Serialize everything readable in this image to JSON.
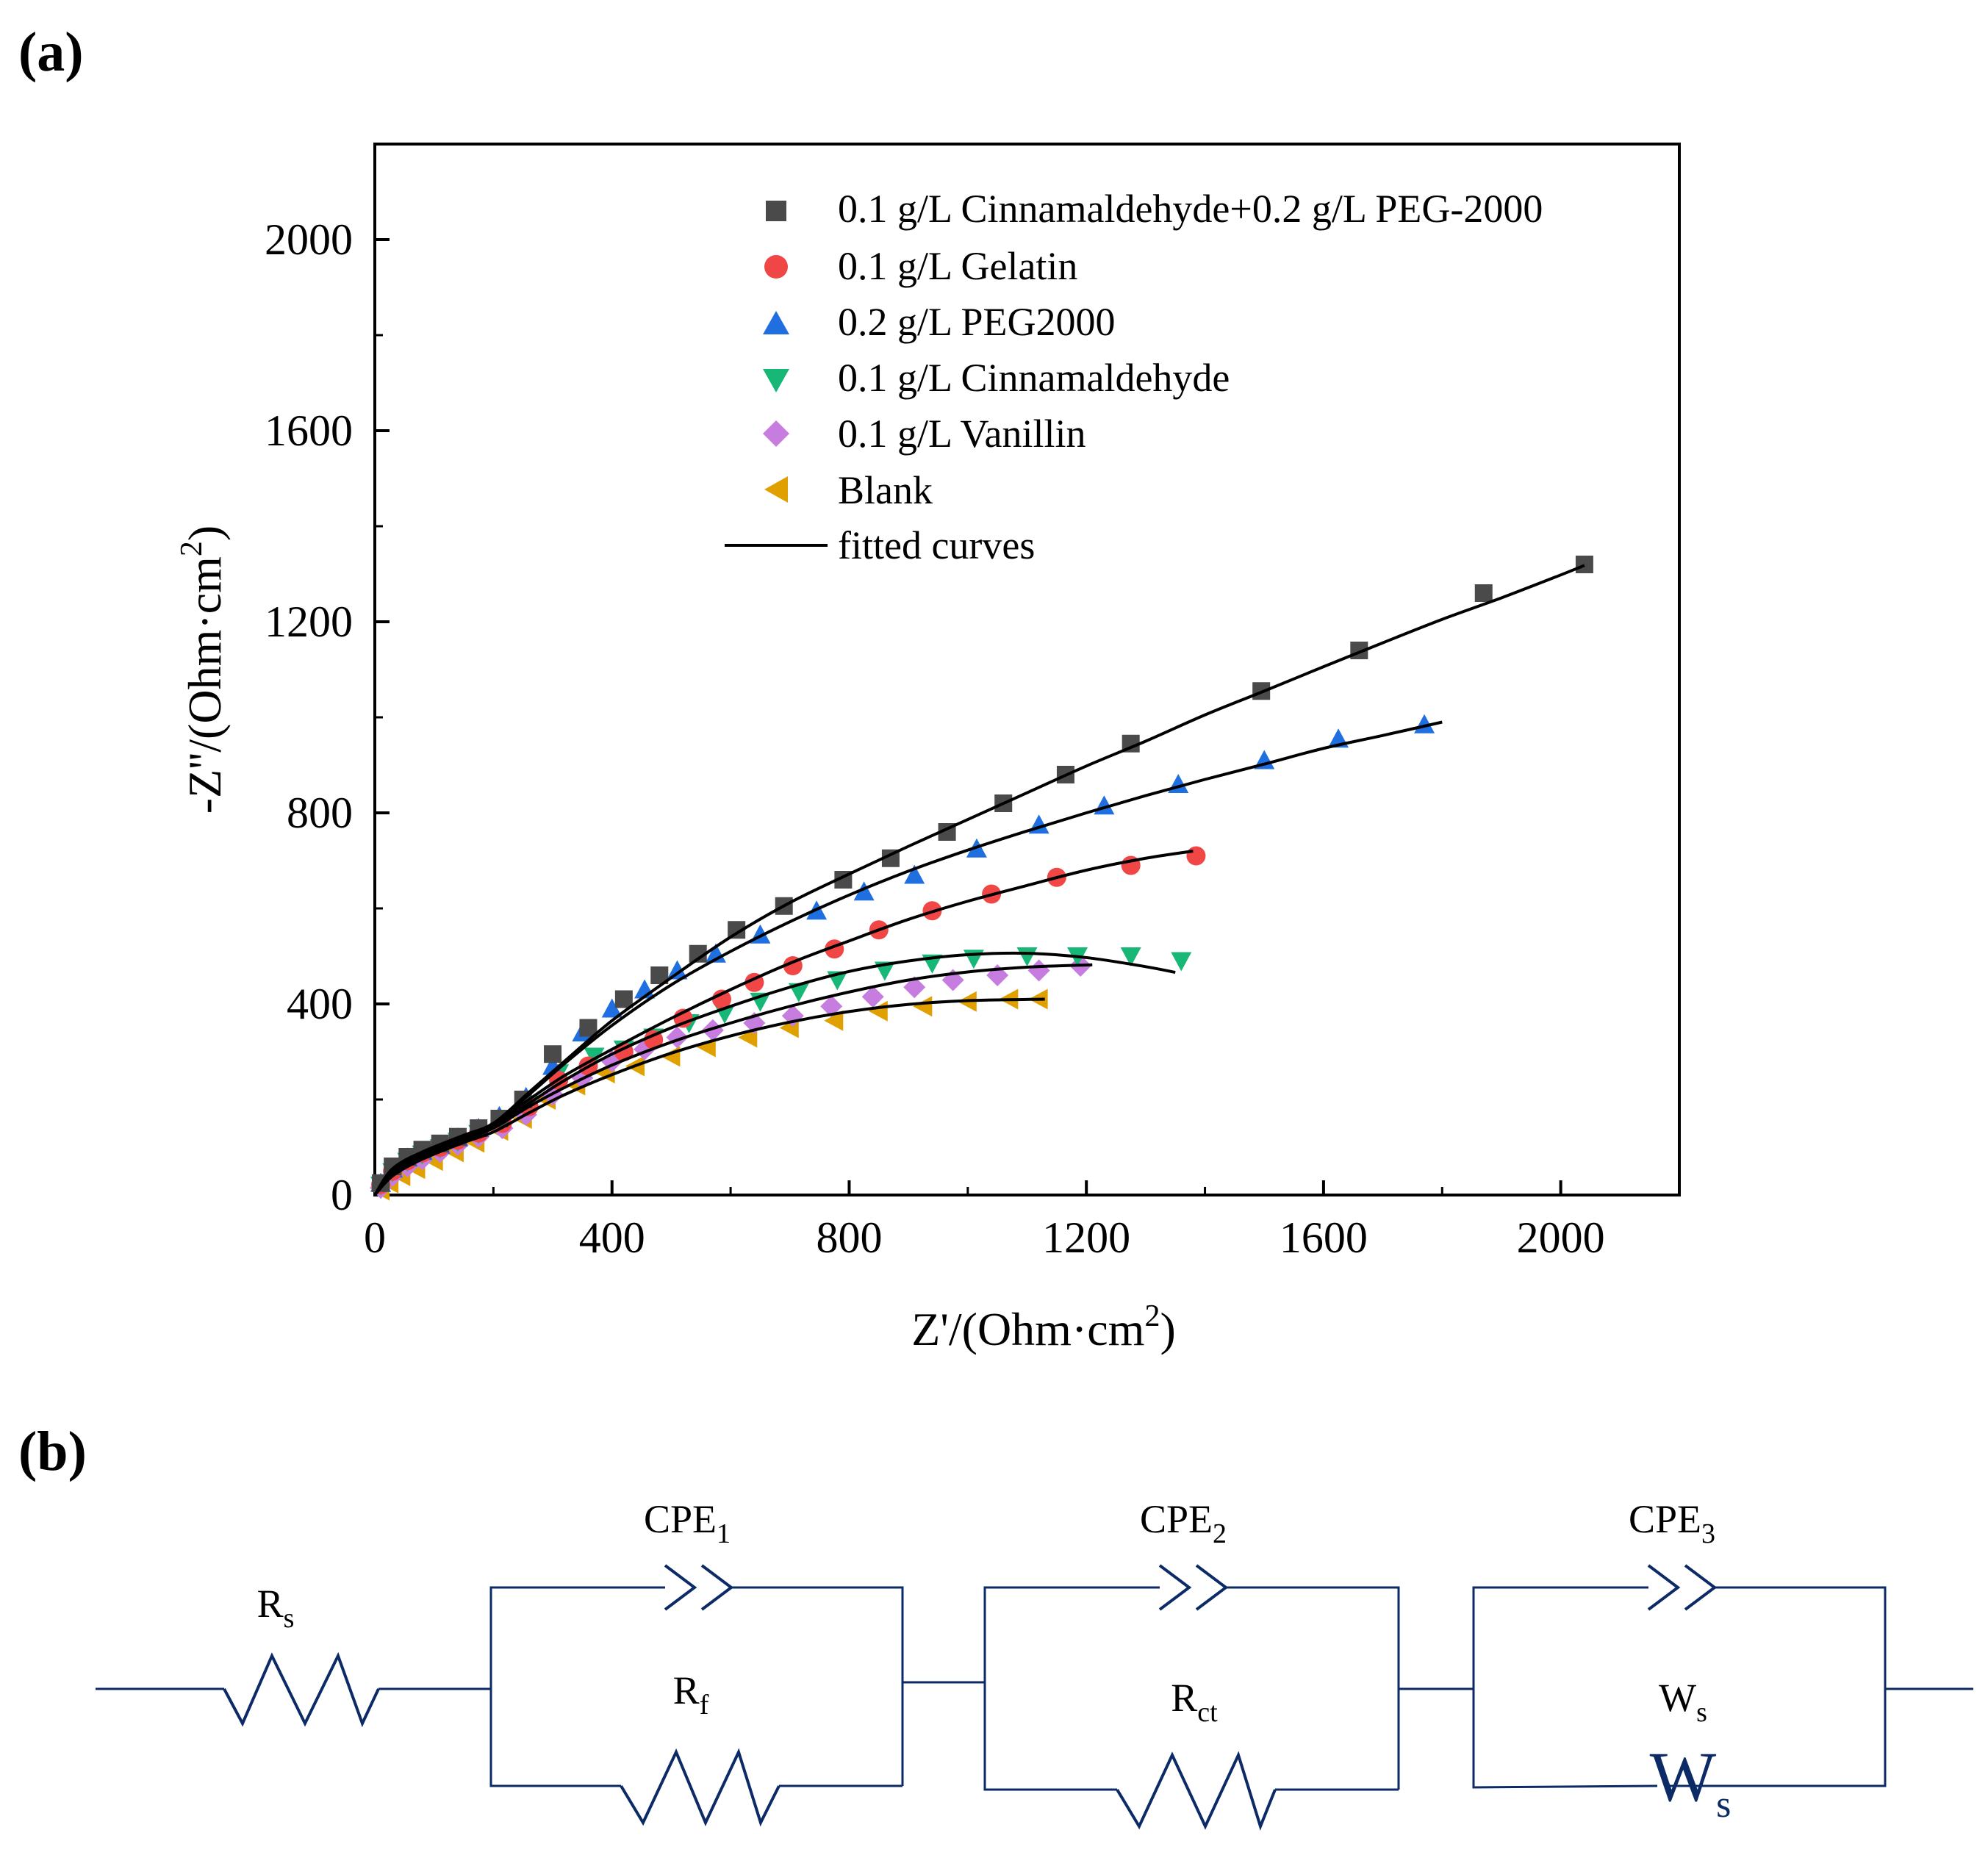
{
  "panel_a": {
    "label": "(a)"
  },
  "panel_b": {
    "label": "(b)"
  },
  "chart_data": {
    "type": "scatter",
    "title": "",
    "xlabel": "Z'/(Ohm·cm",
    "xlabel_sup": "2",
    "xlabel_end": ")",
    "ylabel": "-Z''/(Ohm·cm",
    "ylabel_sup": "2",
    "ylabel_end": ")",
    "xlim": [
      0,
      2200
    ],
    "ylim": [
      0,
      2200
    ],
    "xticks": [
      0,
      400,
      800,
      1200,
      1600,
      2000
    ],
    "xtick_labels": [
      "0",
      "400",
      "800",
      "1200",
      "1600",
      "2000"
    ],
    "yticks": [
      0,
      400,
      800,
      1200,
      1600,
      2000
    ],
    "ytick_labels": [
      "0",
      "400",
      "800",
      "1200",
      "1600",
      "2000"
    ],
    "legend_position": "top-right",
    "fit_label": "fitted curves",
    "series": [
      {
        "name": "0.1 g/L Cinnamaldehyde+0.2 g/L PEG-2000",
        "marker": "square",
        "color": "#4a4a4a",
        "x": [
          10,
          30,
          55,
          80,
          110,
          140,
          175,
          210,
          250,
          300,
          360,
          420,
          480,
          545,
          610,
          690,
          790,
          870,
          965,
          1060,
          1165,
          1275,
          1495,
          1660,
          1870,
          2040
        ],
        "y": [
          25,
          60,
          80,
          95,
          108,
          122,
          140,
          160,
          200,
          295,
          350,
          410,
          460,
          505,
          555,
          605,
          660,
          705,
          760,
          820,
          880,
          945,
          1055,
          1140,
          1260,
          1320
        ],
        "fit_x": [
          0,
          30,
          80,
          150,
          200,
          260,
          320,
          400,
          500,
          600,
          700,
          800,
          900,
          1000,
          1100,
          1200,
          1300,
          1400,
          1500,
          1600,
          1700,
          1800,
          1900,
          2000,
          2040
        ],
        "fit_y": [
          0,
          55,
          90,
          125,
          150,
          215,
          280,
          365,
          455,
          540,
          612,
          672,
          730,
          786,
          842,
          898,
          950,
          1005,
          1055,
          1106,
          1156,
          1205,
          1250,
          1298,
          1318
        ]
      },
      {
        "name": "0.1 g/L Gelatin",
        "marker": "circle",
        "color": "#f04646",
        "x": [
          10,
          30,
          55,
          80,
          110,
          140,
          175,
          215,
          260,
          310,
          360,
          420,
          470,
          520,
          585,
          640,
          705,
          775,
          850,
          940,
          1040,
          1150,
          1275,
          1385
        ],
        "y": [
          22,
          50,
          72,
          88,
          100,
          115,
          130,
          150,
          185,
          240,
          270,
          300,
          325,
          370,
          410,
          445,
          480,
          515,
          555,
          595,
          630,
          665,
          690,
          710
        ],
        "fit_x": [
          0,
          30,
          80,
          150,
          200,
          260,
          320,
          400,
          500,
          600,
          700,
          800,
          900,
          1000,
          1100,
          1200,
          1300,
          1380
        ],
        "fit_y": [
          0,
          50,
          85,
          120,
          150,
          200,
          250,
          305,
          370,
          430,
          485,
          532,
          577,
          615,
          648,
          680,
          705,
          720
        ]
      },
      {
        "name": "0.2 g/L PEG2000",
        "marker": "triangle-up",
        "color": "#1f6fe0",
        "x": [
          10,
          30,
          55,
          80,
          110,
          140,
          175,
          210,
          255,
          300,
          350,
          400,
          455,
          510,
          575,
          650,
          745,
          825,
          910,
          1015,
          1120,
          1230,
          1355,
          1500,
          1625,
          1770
        ],
        "y": [
          25,
          55,
          78,
          92,
          105,
          120,
          140,
          165,
          205,
          270,
          340,
          390,
          430,
          470,
          505,
          545,
          595,
          635,
          670,
          725,
          775,
          815,
          860,
          910,
          955,
          985
        ],
        "fit_x": [
          0,
          30,
          80,
          150,
          200,
          260,
          320,
          400,
          500,
          600,
          700,
          800,
          900,
          1000,
          1100,
          1200,
          1300,
          1400,
          1500,
          1600,
          1700,
          1800
        ],
        "fit_y": [
          0,
          55,
          90,
          125,
          150,
          210,
          275,
          355,
          440,
          510,
          572,
          628,
          678,
          722,
          762,
          800,
          836,
          870,
          902,
          935,
          962,
          990
        ]
      },
      {
        "name": "0.1 g/L Cinnamaldehyde",
        "marker": "triangle-down",
        "color": "#17b877",
        "x": [
          10,
          30,
          55,
          80,
          110,
          140,
          175,
          215,
          260,
          310,
          370,
          420,
          470,
          530,
          590,
          650,
          715,
          780,
          860,
          940,
          1010,
          1100,
          1185,
          1275,
          1360
        ],
        "y": [
          20,
          48,
          70,
          85,
          98,
          112,
          128,
          150,
          190,
          255,
          290,
          305,
          330,
          360,
          380,
          405,
          425,
          450,
          470,
          485,
          495,
          500,
          500,
          500,
          490
        ],
        "fit_x": [
          0,
          30,
          80,
          150,
          200,
          260,
          320,
          400,
          500,
          600,
          700,
          800,
          900,
          1000,
          1100,
          1200,
          1300,
          1350
        ],
        "fit_y": [
          0,
          45,
          80,
          115,
          145,
          192,
          240,
          295,
          350,
          395,
          435,
          468,
          490,
          503,
          506,
          497,
          478,
          466
        ]
      },
      {
        "name": "0.1 g/L Vanillin",
        "marker": "diamond",
        "color": "#c77de0",
        "x": [
          10,
          30,
          55,
          80,
          110,
          140,
          175,
          215,
          255,
          300,
          350,
          400,
          455,
          510,
          570,
          640,
          705,
          770,
          840,
          910,
          975,
          1050,
          1120,
          1190
        ],
        "y": [
          15,
          40,
          60,
          75,
          90,
          105,
          122,
          140,
          168,
          210,
          245,
          280,
          305,
          330,
          345,
          360,
          375,
          395,
          415,
          435,
          450,
          460,
          470,
          480
        ],
        "fit_x": [
          0,
          30,
          80,
          150,
          200,
          260,
          320,
          400,
          500,
          600,
          700,
          800,
          900,
          1000,
          1100,
          1210
        ],
        "fit_y": [
          0,
          42,
          78,
          115,
          140,
          185,
          225,
          272,
          320,
          360,
          395,
          425,
          450,
          467,
          477,
          482
        ]
      },
      {
        "name": "Blank",
        "marker": "triangle-left",
        "color": "#e0a000",
        "x": [
          10,
          25,
          45,
          70,
          100,
          135,
          170,
          210,
          250,
          290,
          340,
          390,
          440,
          500,
          560,
          630,
          700,
          775,
          850,
          925,
          1000,
          1070,
          1120
        ],
        "y": [
          10,
          25,
          40,
          55,
          72,
          90,
          110,
          135,
          160,
          200,
          230,
          255,
          270,
          290,
          310,
          330,
          350,
          365,
          385,
          395,
          405,
          410,
          410
        ],
        "fit_x": [
          0,
          30,
          80,
          150,
          200,
          260,
          320,
          400,
          500,
          600,
          700,
          800,
          900,
          1000,
          1130
        ],
        "fit_y": [
          0,
          40,
          75,
          110,
          132,
          172,
          210,
          252,
          297,
          333,
          362,
          384,
          399,
          407,
          410
        ]
      }
    ]
  },
  "circuit": {
    "Rs": "R",
    "Rs_sub": "s",
    "CPE1": "CPE",
    "CPE1_sub": "1",
    "CPE2": "CPE",
    "CPE2_sub": "2",
    "CPE3": "CPE",
    "CPE3_sub": "3",
    "Rf": "R",
    "Rf_sub": "f",
    "Rct": "R",
    "Rct_sub": "ct",
    "Ws_label": "W",
    "Ws_label_sub": "s",
    "Ws_symbol": "W",
    "Ws_symbol_sub": "s",
    "line_color": "#0c2a66"
  }
}
